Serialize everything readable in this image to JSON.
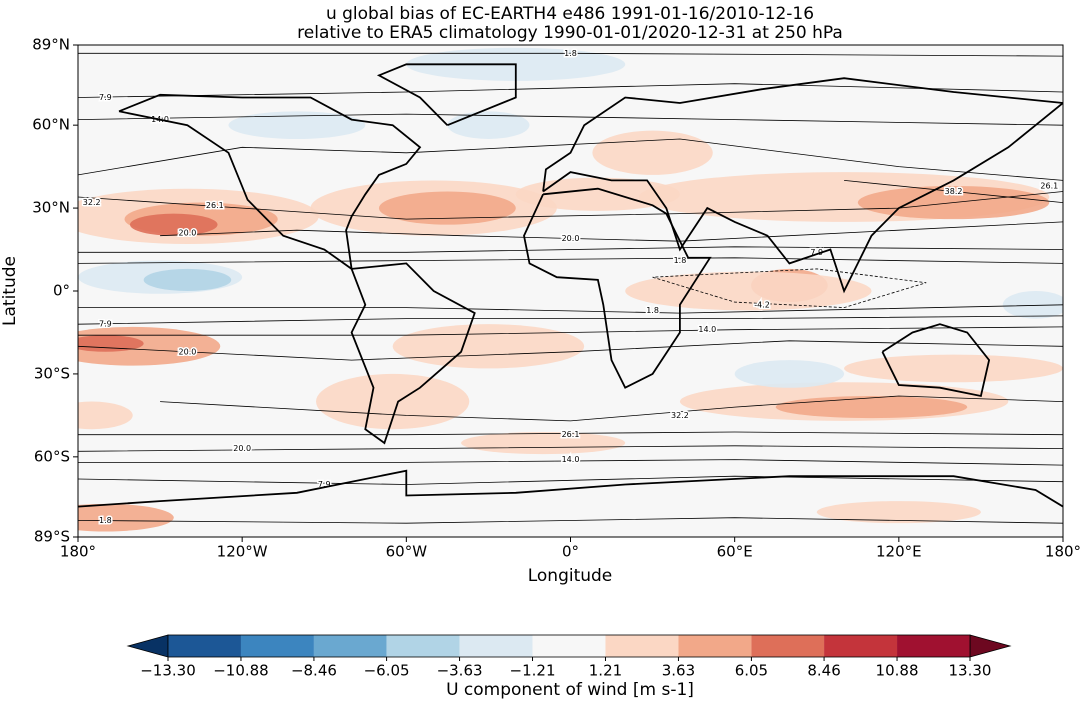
{
  "chart_data": {
    "type": "map",
    "title": "u global bias of EC-EARTH4 e486 1991-01-16/2010-12-16",
    "subtitle": "relative to ERA5 climatology 1990-01-01/2020-12-31 at 250 hPa",
    "xlabel": "Longitude",
    "ylabel": "Latitude",
    "xlim": [
      -180,
      180
    ],
    "ylim": [
      -89,
      89
    ],
    "xticks": [
      {
        "value": -180,
        "label": "180°"
      },
      {
        "value": -120,
        "label": "120°W"
      },
      {
        "value": -60,
        "label": "60°W"
      },
      {
        "value": 0,
        "label": "0°"
      },
      {
        "value": 60,
        "label": "60°E"
      },
      {
        "value": 120,
        "label": "120°E"
      },
      {
        "value": 180,
        "label": "180°"
      }
    ],
    "yticks": [
      {
        "value": 89,
        "label": "89°N"
      },
      {
        "value": 60,
        "label": "60°N"
      },
      {
        "value": 30,
        "label": "30°N"
      },
      {
        "value": 0,
        "label": "0°"
      },
      {
        "value": -30,
        "label": "30°S"
      },
      {
        "value": -60,
        "label": "60°S"
      },
      {
        "value": -89,
        "label": "89°S"
      }
    ],
    "contour_levels": [
      -4.2,
      1.8,
      7.9,
      {
        "value": 14,
        "label": "14.0"
      },
      {
        "value": 20,
        "label": "20.0"
      },
      26.1,
      32.2,
      38.2
    ],
    "colorbar": {
      "label": "U component of wind [m s-1]",
      "extend": "both",
      "ticks": [
        {
          "value": -13.3,
          "label": "−13.30"
        },
        {
          "value": -10.88,
          "label": "−10.88"
        },
        {
          "value": -8.46,
          "label": "−8.46"
        },
        {
          "value": -6.05,
          "label": "−6.05"
        },
        {
          "value": -3.63,
          "label": "−3.63"
        },
        {
          "value": -1.21,
          "label": "−1.21"
        },
        {
          "value": 1.21,
          "label": "1.21"
        },
        {
          "value": 3.63,
          "label": "3.63"
        },
        {
          "value": 6.05,
          "label": "6.05"
        },
        {
          "value": 8.46,
          "label": "8.46"
        },
        {
          "value": 10.88,
          "label": "10.88"
        },
        {
          "value": 13.3,
          "label": "13.30"
        }
      ],
      "colors": [
        "#083264",
        "#1c5796",
        "#3c85bf",
        "#6aa8d0",
        "#b1d4e6",
        "#dce9f2",
        "#f7f7f7",
        "#fbd7c4",
        "#f2a889",
        "#de6f59",
        "#c4343b",
        "#a01130",
        "#6d0820"
      ]
    }
  }
}
